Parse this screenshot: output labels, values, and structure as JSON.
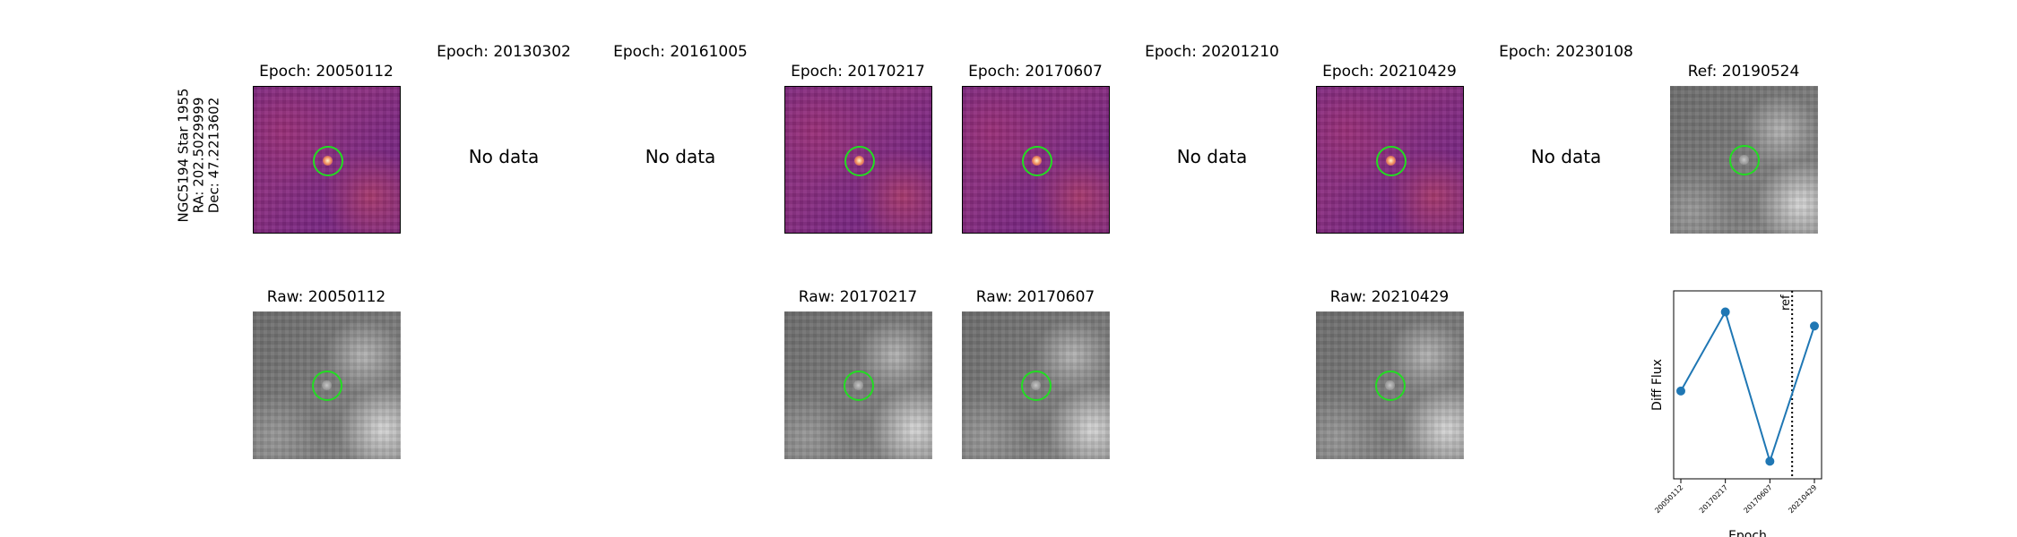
{
  "star_label": {
    "name": "NGC5194 Star 1955",
    "ra": "RA: 202.5029999",
    "dec": "Dec: 47.2213602"
  },
  "top_row": [
    {
      "title": "Epoch: 20050112",
      "has_data": true
    },
    {
      "title": "Epoch: 20130302",
      "has_data": false
    },
    {
      "title": "Epoch: 20161005",
      "has_data": false
    },
    {
      "title": "Epoch: 20170217",
      "has_data": true
    },
    {
      "title": "Epoch: 20170607",
      "has_data": true
    },
    {
      "title": "Epoch: 20201210",
      "has_data": false
    },
    {
      "title": "Epoch: 20210429",
      "has_data": true
    },
    {
      "title": "Epoch: 20230108",
      "has_data": false
    },
    {
      "title": "Ref: 20190524",
      "has_data": true,
      "is_ref": true
    }
  ],
  "no_data_text": "No data",
  "bottom_row": [
    {
      "title": "Raw: 20050112"
    },
    {
      "title": "Raw: 20170217"
    },
    {
      "title": "Raw: 20170607"
    },
    {
      "title": "Raw: 20210429"
    }
  ],
  "chart_data": {
    "type": "line",
    "categories": [
      "20050112",
      "20170217",
      "20170607",
      "20210429"
    ],
    "values": [
      0.45,
      0.9,
      0.05,
      0.82
    ],
    "ylabel": "Diff Flux",
    "xlabel": "Epoch",
    "ref_line": {
      "label": "ref",
      "position_between": [
        "20170607",
        "20210429"
      ],
      "fraction": 0.5
    },
    "color": "#1f77b4",
    "yticks_shown": false
  }
}
